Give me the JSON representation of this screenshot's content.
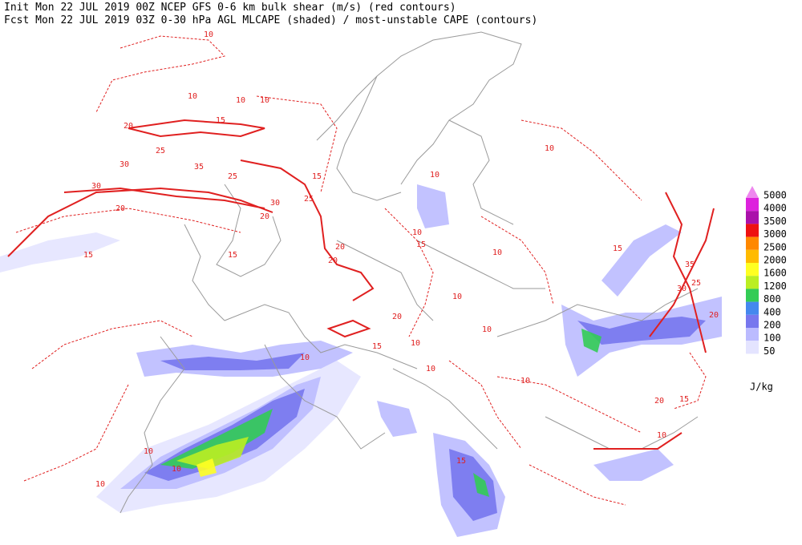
{
  "header": {
    "line1": "Init  Mon 22 JUL 2019 00Z  NCEP GFS 0-6 km bulk shear (m/s) (red contours)",
    "line2": "Fcst Mon 22 JUL 2019 03Z  0-30 hPa AGL MLCAPE (shaded) / most-unstable CAPE (contours)"
  },
  "legend": {
    "items": [
      {
        "label": "5000",
        "color": "#ee88ee"
      },
      {
        "label": "4000",
        "color": "#dd22dd"
      },
      {
        "label": "3500",
        "color": "#aa11aa"
      },
      {
        "label": "3000",
        "color": "#ee1111"
      },
      {
        "label": "2500",
        "color": "#ff8800"
      },
      {
        "label": "2000",
        "color": "#ffbb00"
      },
      {
        "label": "1600",
        "color": "#ffff22"
      },
      {
        "label": "1200",
        "color": "#bbee22"
      },
      {
        "label": "800",
        "color": "#33cc55"
      },
      {
        "label": "400",
        "color": "#4488ee"
      },
      {
        "label": "200",
        "color": "#7777ee"
      },
      {
        "label": "100",
        "color": "#bbbbff"
      },
      {
        "label": "50",
        "color": "#e4e4ff"
      }
    ],
    "unit": "J/kg"
  },
  "contour_labels": [
    10,
    10,
    20,
    15,
    25,
    30,
    35,
    20,
    30,
    10,
    15,
    10,
    25,
    20,
    30,
    25,
    20,
    15,
    20,
    15,
    10,
    10,
    10,
    15,
    10,
    10,
    15,
    10,
    10,
    15,
    10,
    10,
    20,
    35,
    30,
    25,
    20,
    15,
    20,
    15,
    10,
    10,
    10,
    10,
    10
  ]
}
